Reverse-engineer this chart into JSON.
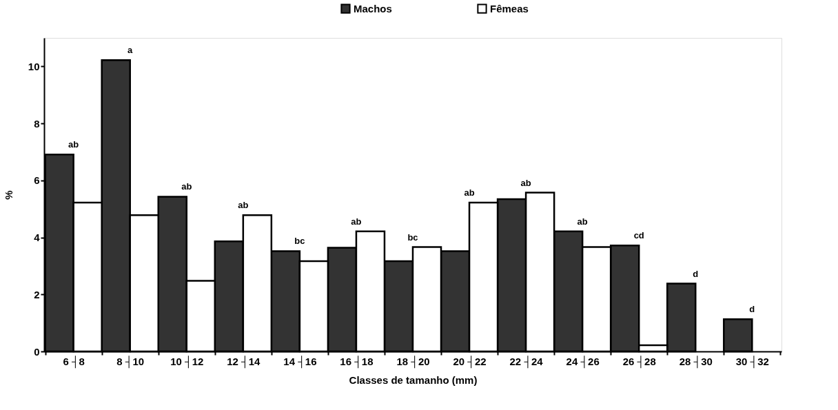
{
  "chart_data": {
    "type": "bar",
    "xlabel": "Classes de tamanho (mm)",
    "ylabel": "%",
    "categories": [
      "6 ┤8",
      "8 ┤10",
      "10 ┤12",
      "12 ┤14",
      "14 ┤16",
      "16 ┤18",
      "18 ┤20",
      "20 ┤22",
      "22 ┤24",
      "24 ┤26",
      "26 ┤28",
      "28 ┤30",
      "30 ┤32"
    ],
    "series": [
      {
        "name": "Machos",
        "color": "#333333",
        "values": [
          6.91,
          10.22,
          5.43,
          3.86,
          3.52,
          3.64,
          3.17,
          3.52,
          5.34,
          4.21,
          3.72,
          2.38,
          1.13
        ]
      },
      {
        "name": "Fêmeas",
        "color": "#ffffff",
        "values": [
          5.22,
          4.78,
          2.48,
          4.78,
          3.17,
          4.21,
          3.66,
          5.22,
          5.57,
          3.66,
          0.22,
          0,
          0
        ]
      }
    ],
    "ylim": [
      0,
      11
    ],
    "yticks": [
      0,
      2,
      4,
      6,
      8,
      10
    ],
    "grid": false,
    "legend": "top",
    "annotations": [
      "ab",
      "a",
      "ab",
      "ab",
      "bc",
      "ab",
      "bc",
      "ab",
      "ab",
      "ab",
      "cd",
      "d",
      "d"
    ]
  }
}
